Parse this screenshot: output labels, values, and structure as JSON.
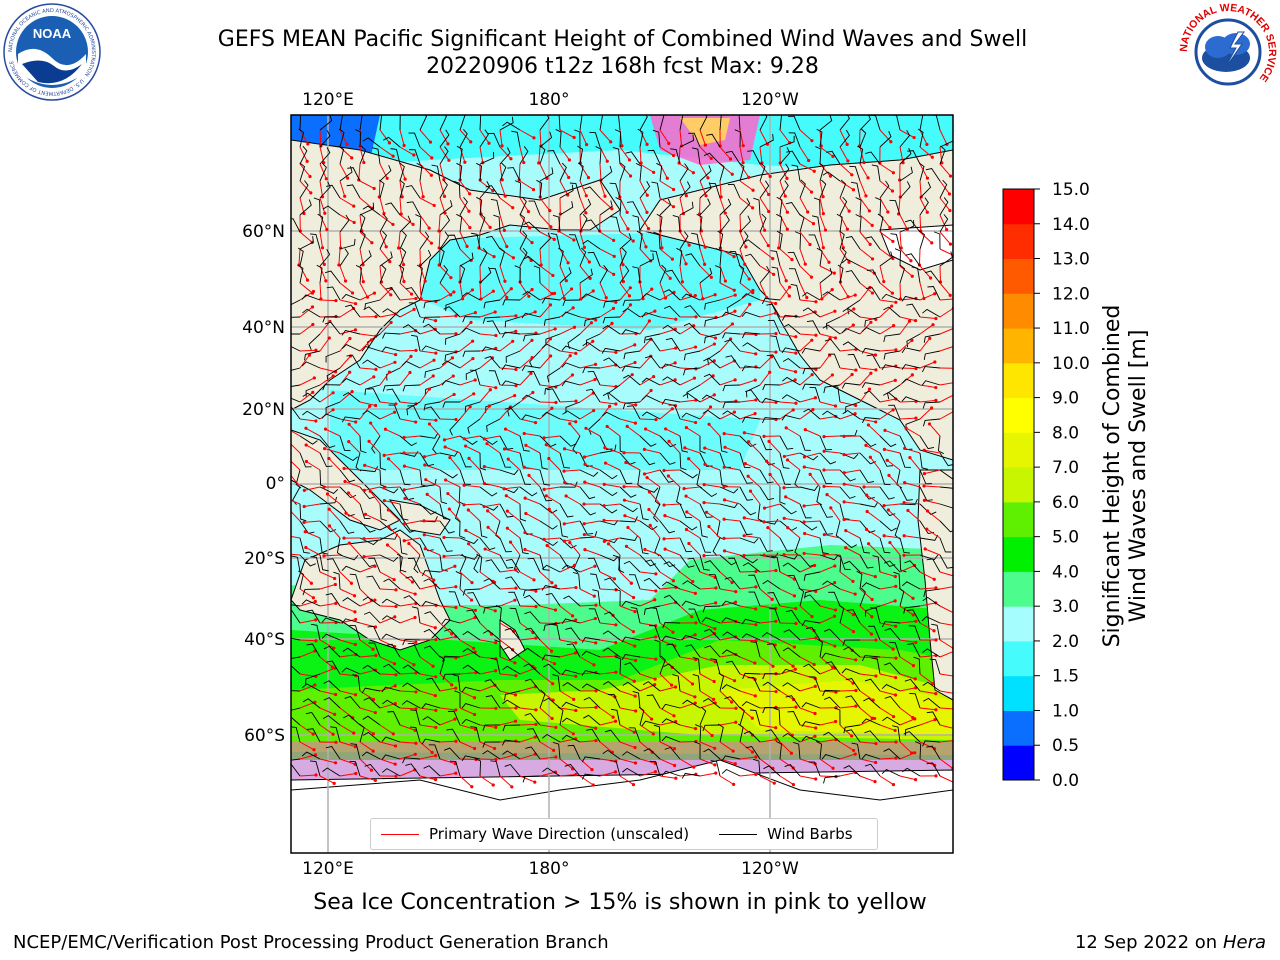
{
  "header": {
    "title_line1": "GEFS MEAN Pacific Significant Height of Combined Wind Waves and Swell",
    "title_line2": "20220906 t12z 168h fcst   Max: 9.28"
  },
  "logos": {
    "noaa": {
      "text": "NOAA",
      "ring_text": "NATIONAL OCEANIC AND ATMOSPHERIC ADMINISTRATION · U.S. DEPARTMENT OF COMMERCE"
    },
    "nws": {
      "ring_text": "NATIONAL WEATHER SERVICE"
    }
  },
  "map": {
    "top_lon_labels": [
      "120°E",
      "180°",
      "120°W"
    ],
    "bottom_lon_labels": [
      "120°E",
      "180°",
      "120°W"
    ],
    "lat_labels": [
      "60°N",
      "40°N",
      "20°N",
      "0°",
      "20°S",
      "40°S",
      "60°S"
    ],
    "legend": {
      "primary_wave_label": "Primary Wave Direction (unscaled)",
      "wind_barbs_label": "Wind Barbs",
      "primary_wave_color": "#ff0000",
      "wind_barbs_color": "#000000"
    },
    "colors": {
      "land": "#efeedd",
      "ice_free_ocean": "#a8fcfc",
      "grid": "#b0b0b0"
    }
  },
  "colorbar": {
    "title_line1": "Significant Height of Combined",
    "title_line2": "Wind Waves and Swell [m]",
    "tick_labels": [
      "0.0",
      "0.5",
      "1.0",
      "1.5",
      "2.0",
      "3.0",
      "4.0",
      "5.0",
      "6.0",
      "7.0",
      "8.0",
      "9.0",
      "10.0",
      "11.0",
      "12.0",
      "13.0",
      "14.0",
      "15.0"
    ],
    "colors": [
      "#0000ff",
      "#0a6eff",
      "#00e1ff",
      "#45fbfb",
      "#a6fdfd",
      "#4cfc8c",
      "#00f000",
      "#5ef000",
      "#c8f500",
      "#e6f500",
      "#ffff00",
      "#ffe600",
      "#ffb400",
      "#ff8c00",
      "#ff5a00",
      "#ff2d00",
      "#ff0000"
    ]
  },
  "footer": {
    "note": "Sea Ice Concentration > 15% is shown in pink to yellow",
    "credit_left": "NCEP/EMC/Verification Post Processing Product Generation Branch",
    "credit_date": "12 Sep 2022 on",
    "credit_machine": "Hera"
  }
}
